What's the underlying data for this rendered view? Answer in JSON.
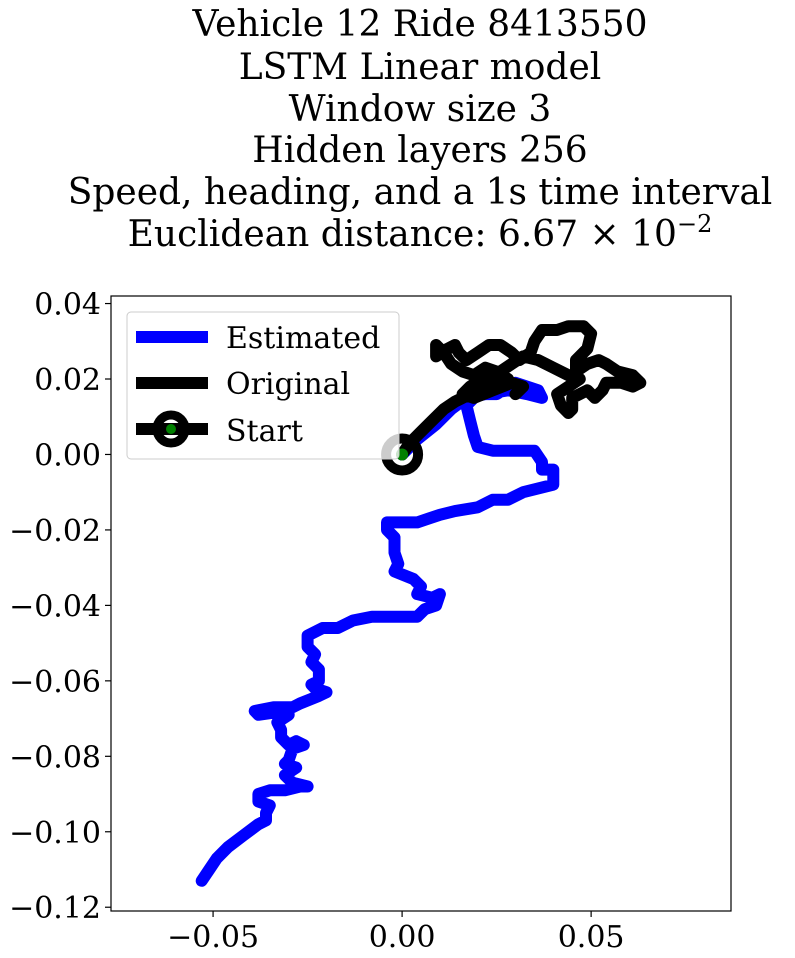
{
  "chart_data": {
    "type": "line",
    "title_lines": [
      "Vehicle 12 Ride 8413550",
      "LSTM Linear model",
      "Window size 3",
      "Hidden layers 256",
      "Speed, heading, and a 1s time interval",
      "Euclidean distance: "
    ],
    "distance_mantissa": "6.67",
    "distance_exponent": "−2",
    "xlim": [
      -0.077,
      0.087
    ],
    "ylim": [
      -0.121,
      0.042
    ],
    "xticks": [
      -0.05,
      0.0,
      0.05
    ],
    "xtick_labels": [
      "−0.05",
      "0.00",
      "0.05"
    ],
    "yticks": [
      0.04,
      0.02,
      0.0,
      -0.02,
      -0.04,
      -0.06,
      -0.08,
      -0.1,
      -0.12
    ],
    "ytick_labels": [
      "0.04",
      "0.02",
      "0.00",
      "−0.02",
      "−0.04",
      "−0.06",
      "−0.08",
      "−0.10",
      "−0.12"
    ],
    "legend": {
      "location": "upper-left",
      "entries": [
        "Estimated",
        "Original",
        "Start"
      ]
    },
    "colors": {
      "estimated": "#0000ff",
      "original": "#000000",
      "start_fill": "#008000",
      "start_edge": "#000000"
    },
    "series": [
      {
        "name": "Estimated",
        "points": [
          [
            0,
            0
          ],
          [
            0.004,
            0.004
          ],
          [
            0.009,
            0.008
          ],
          [
            0.013,
            0.012
          ],
          [
            0.017,
            0.015
          ],
          [
            0.022,
            0.016
          ],
          [
            0.028,
            0.017
          ],
          [
            0.033,
            0.016
          ],
          [
            0.037,
            0.015
          ],
          [
            0.036,
            0.017
          ],
          [
            0.03,
            0.019
          ],
          [
            0.025,
            0.016
          ],
          [
            0.02,
            0.016
          ],
          [
            0.017,
            0.013
          ],
          [
            0.018,
            0.009
          ],
          [
            0.019,
            0.005
          ],
          [
            0.02,
            0.002
          ],
          [
            0.024,
            0.001
          ],
          [
            0.03,
            0.001
          ],
          [
            0.035,
            0.001
          ],
          [
            0.037,
            -0.002
          ],
          [
            0.037,
            -0.004
          ],
          [
            0.04,
            -0.004
          ],
          [
            0.04,
            -0.008
          ],
          [
            0.036,
            -0.009
          ],
          [
            0.032,
            -0.01
          ],
          [
            0.028,
            -0.012
          ],
          [
            0.024,
            -0.012
          ],
          [
            0.02,
            -0.014
          ],
          [
            0.014,
            -0.015
          ],
          [
            0.01,
            -0.016
          ],
          [
            0.007,
            -0.017
          ],
          [
            0.004,
            -0.018
          ],
          [
            0.0,
            -0.018
          ],
          [
            -0.004,
            -0.018
          ],
          [
            -0.004,
            -0.02
          ],
          [
            -0.002,
            -0.022
          ],
          [
            -0.002,
            -0.026
          ],
          [
            -0.001,
            -0.029
          ],
          [
            -0.002,
            -0.031
          ],
          [
            0.003,
            -0.033
          ],
          [
            0.005,
            -0.035
          ],
          [
            0.004,
            -0.037
          ],
          [
            0.008,
            -0.038
          ],
          [
            0.01,
            -0.037
          ],
          [
            0.009,
            -0.04
          ],
          [
            0.006,
            -0.041
          ],
          [
            0.004,
            -0.043
          ],
          [
            -0.001,
            -0.043
          ],
          [
            -0.008,
            -0.043
          ],
          [
            -0.013,
            -0.044
          ],
          [
            -0.017,
            -0.046
          ],
          [
            -0.021,
            -0.046
          ],
          [
            -0.025,
            -0.048
          ],
          [
            -0.025,
            -0.051
          ],
          [
            -0.023,
            -0.053
          ],
          [
            -0.024,
            -0.055
          ],
          [
            -0.022,
            -0.057
          ],
          [
            -0.022,
            -0.06
          ],
          [
            -0.024,
            -0.061
          ],
          [
            -0.023,
            -0.062
          ],
          [
            -0.02,
            -0.063
          ],
          [
            -0.022,
            -0.064
          ],
          [
            -0.027,
            -0.066
          ],
          [
            -0.029,
            -0.067
          ],
          [
            -0.034,
            -0.067
          ],
          [
            -0.039,
            -0.068
          ],
          [
            -0.038,
            -0.069
          ],
          [
            -0.031,
            -0.068
          ],
          [
            -0.03,
            -0.069
          ],
          [
            -0.033,
            -0.071
          ],
          [
            -0.032,
            -0.073
          ],
          [
            -0.032,
            -0.075
          ],
          [
            -0.03,
            -0.077
          ],
          [
            -0.028,
            -0.076
          ],
          [
            -0.026,
            -0.077
          ],
          [
            -0.029,
            -0.078
          ],
          [
            -0.03,
            -0.081
          ],
          [
            -0.031,
            -0.082
          ],
          [
            -0.028,
            -0.083
          ],
          [
            -0.031,
            -0.085
          ],
          [
            -0.029,
            -0.087
          ],
          [
            -0.025,
            -0.088
          ],
          [
            -0.027,
            -0.088
          ],
          [
            -0.031,
            -0.089
          ],
          [
            -0.035,
            -0.089
          ],
          [
            -0.038,
            -0.09
          ],
          [
            -0.038,
            -0.092
          ],
          [
            -0.035,
            -0.093
          ],
          [
            -0.036,
            -0.095
          ],
          [
            -0.036,
            -0.097
          ],
          [
            -0.038,
            -0.098
          ],
          [
            -0.042,
            -0.101
          ],
          [
            -0.046,
            -0.104
          ],
          [
            -0.049,
            -0.107
          ],
          [
            -0.051,
            -0.11
          ],
          [
            -0.053,
            -0.113
          ]
        ]
      },
      {
        "name": "Original",
        "points": [
          [
            0,
            0
          ],
          [
            0.002,
            0.003
          ],
          [
            0.005,
            0.006
          ],
          [
            0.008,
            0.009
          ],
          [
            0.011,
            0.012
          ],
          [
            0.014,
            0.014
          ],
          [
            0.018,
            0.016
          ],
          [
            0.021,
            0.018
          ],
          [
            0.024,
            0.02
          ],
          [
            0.026,
            0.022
          ],
          [
            0.029,
            0.024
          ],
          [
            0.032,
            0.026
          ],
          [
            0.036,
            0.025
          ],
          [
            0.04,
            0.023
          ],
          [
            0.044,
            0.021
          ],
          [
            0.047,
            0.02
          ],
          [
            0.044,
            0.018
          ],
          [
            0.041,
            0.016
          ],
          [
            0.042,
            0.013
          ],
          [
            0.044,
            0.011
          ],
          [
            0.045,
            0.012
          ],
          [
            0.045,
            0.015
          ],
          [
            0.049,
            0.017
          ],
          [
            0.051,
            0.015
          ],
          [
            0.053,
            0.017
          ],
          [
            0.054,
            0.019
          ],
          [
            0.058,
            0.019
          ],
          [
            0.061,
            0.018
          ],
          [
            0.063,
            0.019
          ],
          [
            0.061,
            0.021
          ],
          [
            0.057,
            0.022
          ],
          [
            0.054,
            0.024
          ],
          [
            0.052,
            0.025
          ],
          [
            0.049,
            0.024
          ],
          [
            0.046,
            0.022
          ],
          [
            0.046,
            0.025
          ],
          [
            0.049,
            0.028
          ],
          [
            0.05,
            0.032
          ],
          [
            0.048,
            0.034
          ],
          [
            0.044,
            0.034
          ],
          [
            0.041,
            0.033
          ],
          [
            0.037,
            0.033
          ],
          [
            0.035,
            0.03
          ],
          [
            0.034,
            0.027
          ],
          [
            0.031,
            0.025
          ],
          [
            0.029,
            0.027
          ],
          [
            0.026,
            0.029
          ],
          [
            0.023,
            0.029
          ],
          [
            0.02,
            0.027
          ],
          [
            0.017,
            0.025
          ],
          [
            0.015,
            0.027
          ],
          [
            0.014,
            0.029
          ],
          [
            0.012,
            0.028
          ],
          [
            0.009,
            0.026
          ],
          [
            0.009,
            0.029
          ],
          [
            0.011,
            0.027
          ],
          [
            0.013,
            0.024
          ],
          [
            0.016,
            0.022
          ],
          [
            0.019,
            0.021
          ],
          [
            0.022,
            0.023
          ],
          [
            0.025,
            0.022
          ],
          [
            0.028,
            0.02
          ],
          [
            0.025,
            0.019
          ],
          [
            0.021,
            0.02
          ],
          [
            0.018,
            0.018
          ],
          [
            0.016,
            0.016
          ],
          [
            0.019,
            0.015
          ],
          [
            0.024,
            0.017
          ],
          [
            0.029,
            0.019
          ],
          [
            0.032,
            0.018
          ],
          [
            0.03,
            0.016
          ]
        ]
      }
    ]
  }
}
